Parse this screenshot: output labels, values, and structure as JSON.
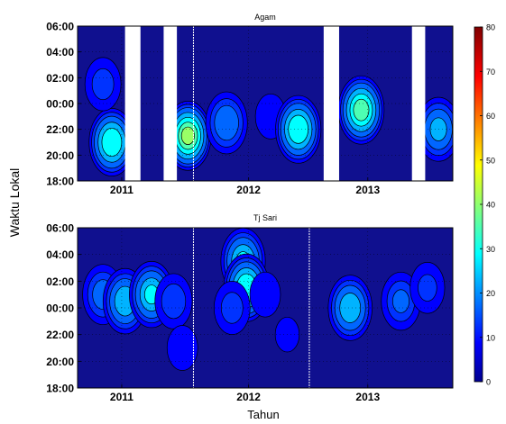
{
  "chart_data": {
    "type": "heatmap",
    "shared_ylabel": "Waktu Lokal",
    "shared_xlabel": "Tahun",
    "colorbar": {
      "ticks": [
        "0",
        "10",
        "20",
        "30",
        "40",
        "50",
        "60",
        "70",
        "80"
      ],
      "range": [
        0,
        80
      ],
      "colormap": "jet"
    },
    "panels": [
      {
        "title": "Agam",
        "y_ticks": [
          "06:00",
          "04:00",
          "02:00",
          "00:00",
          "22:00",
          "20:00",
          "18:00"
        ],
        "x_ticks": [
          "2011",
          "2012",
          "2013"
        ],
        "no_data_gaps": [
          [
            2010.98,
            2011.12
          ],
          [
            2011.33,
            2011.45
          ],
          [
            2012.78,
            2012.92
          ],
          [
            2013.58,
            2013.7
          ]
        ],
        "year_boundaries": [
          2011.6
        ],
        "hotspots": [
          {
            "x": 2010.86,
            "hour": 21.0,
            "value": 35
          },
          {
            "x": 2010.78,
            "hour": 1.5,
            "value": 15
          },
          {
            "x": 2011.55,
            "hour": 21.5,
            "value": 42
          },
          {
            "x": 2011.9,
            "hour": 22.5,
            "value": 22
          },
          {
            "x": 2012.3,
            "hour": 23.0,
            "value": 12
          },
          {
            "x": 2012.55,
            "hour": 22.0,
            "value": 35
          },
          {
            "x": 2013.12,
            "hour": 23.5,
            "value": 38
          },
          {
            "x": 2013.82,
            "hour": 22.0,
            "value": 25
          }
        ]
      },
      {
        "title": "Tj Sari",
        "y_ticks": [
          "06:00",
          "04:00",
          "02:00",
          "00:00",
          "22:00",
          "20:00",
          "18:00"
        ],
        "x_ticks": [
          "2011",
          "2012",
          "2013"
        ],
        "no_data_gaps": [],
        "year_boundaries": [
          2011.6,
          2012.65
        ],
        "hotspots": [
          {
            "x": 2010.78,
            "hour": 1.0,
            "value": 20
          },
          {
            "x": 2010.98,
            "hour": 0.5,
            "value": 28
          },
          {
            "x": 2011.22,
            "hour": 1.0,
            "value": 30
          },
          {
            "x": 2011.42,
            "hour": 0.5,
            "value": 16
          },
          {
            "x": 2011.5,
            "hour": 21.0,
            "value": 12
          },
          {
            "x": 2012.05,
            "hour": 3.5,
            "value": 30
          },
          {
            "x": 2012.08,
            "hour": 1.5,
            "value": 35
          },
          {
            "x": 2011.95,
            "hour": 0.0,
            "value": 15
          },
          {
            "x": 2012.25,
            "hour": 1.0,
            "value": 12
          },
          {
            "x": 2012.45,
            "hour": 22.0,
            "value": 10
          },
          {
            "x": 2013.02,
            "hour": 0.0,
            "value": 28
          },
          {
            "x": 2013.48,
            "hour": 0.5,
            "value": 18
          },
          {
            "x": 2013.72,
            "hour": 1.5,
            "value": 14
          }
        ]
      }
    ]
  }
}
